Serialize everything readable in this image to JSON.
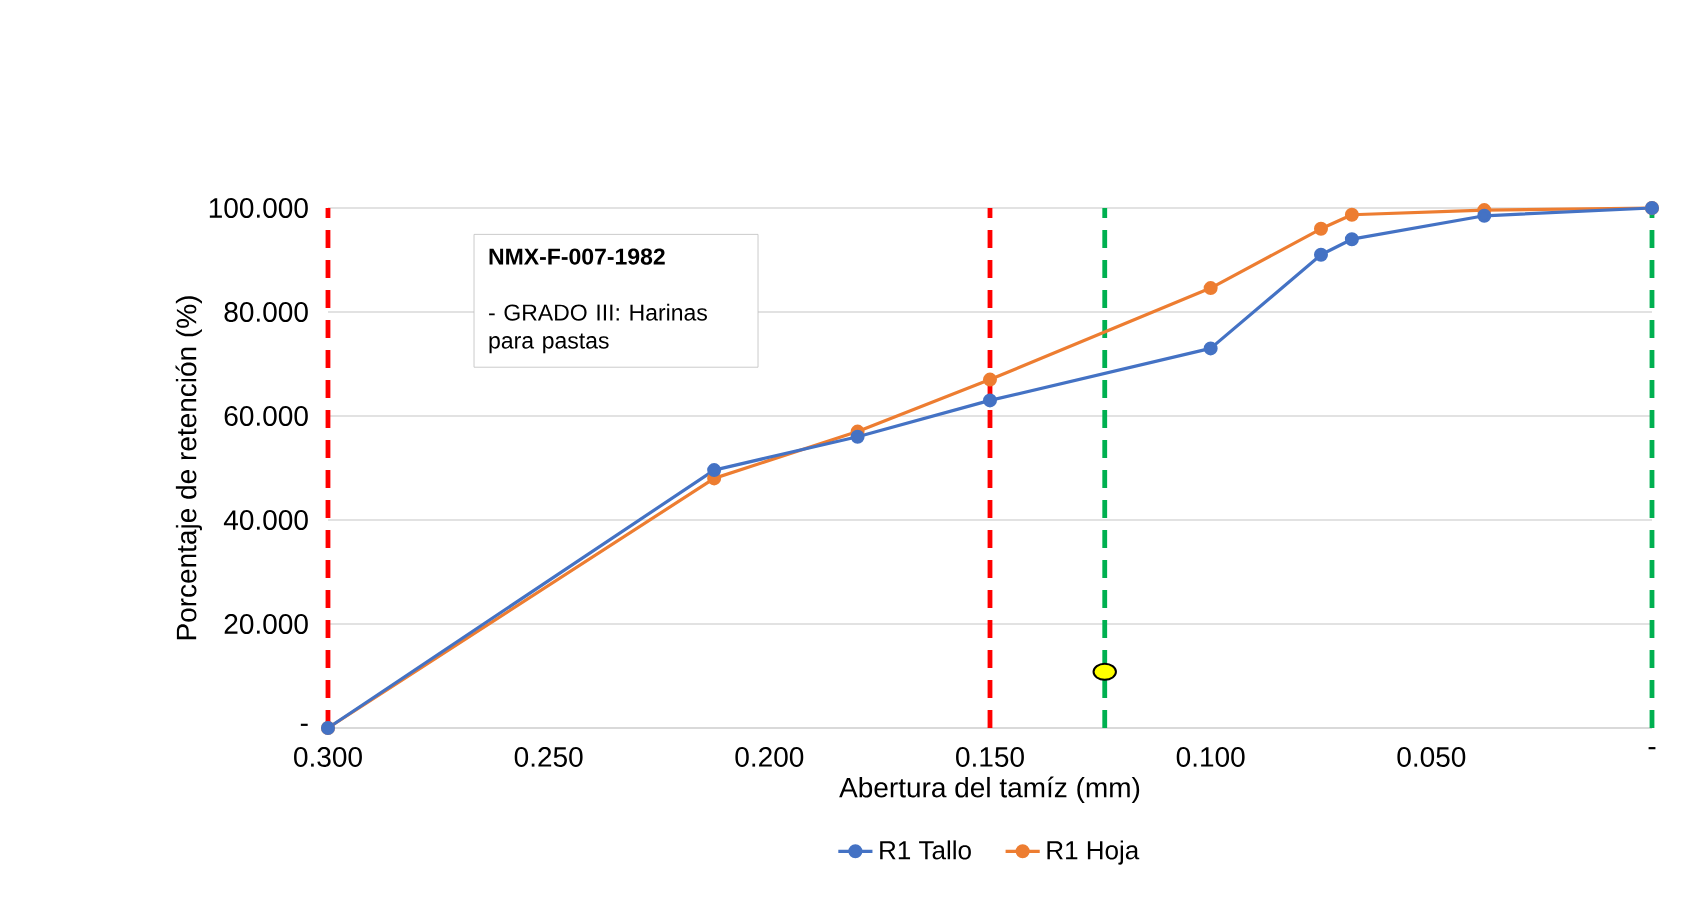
{
  "chart_data": {
    "type": "line",
    "xlabel": "Abertura del tamíz (mm)",
    "ylabel": "Porcentaje de retención (%)",
    "x": [
      0.3,
      0.2125,
      0.18,
      0.15,
      0.1,
      0.075,
      0.068,
      0.038,
      0
    ],
    "series": [
      {
        "name": "R1 Tallo",
        "color": "#4472c4",
        "values": [
          0,
          49.6,
          56,
          63,
          73,
          91,
          94,
          98.5,
          100
        ]
      },
      {
        "name": "R1 Hoja",
        "color": "#ed7d31",
        "values": [
          0,
          48,
          57,
          67,
          84.6,
          96,
          98.7,
          99.6,
          100
        ]
      },
      {
        "type": "scatter",
        "color": "#ffff00",
        "x": [
          0.124
        ],
        "values": [
          10.8
        ]
      }
    ],
    "xlim": [
      0.3,
      0
    ],
    "xticks": [
      {
        "value": 0.3,
        "label": "0.300"
      },
      {
        "value": 0.25,
        "label": "0.250"
      },
      {
        "value": 0.2,
        "label": "0.200"
      },
      {
        "value": 0.15,
        "label": "0.150"
      },
      {
        "value": 0.1,
        "label": "0.100"
      },
      {
        "value": 0.05,
        "label": "0.050"
      },
      {
        "value": 0,
        "label": "-"
      }
    ],
    "ylim": [
      0,
      100
    ],
    "yticks": [
      {
        "value": 0,
        "label": "-"
      },
      {
        "value": 20,
        "label": "20.000"
      },
      {
        "value": 40,
        "label": "40.000"
      },
      {
        "value": 60,
        "label": "60.000"
      },
      {
        "value": 80,
        "label": "80.000"
      },
      {
        "value": 100,
        "label": "100.000"
      }
    ],
    "ref_lines": [
      {
        "axis": "x",
        "value": 0.3,
        "color": "#ff0000",
        "line_style": "dashed"
      },
      {
        "axis": "x",
        "value": 0.15,
        "color": "#ff0000",
        "line_style": "dashed"
      },
      {
        "axis": "x",
        "value": 0.124,
        "color": "#00b050",
        "line_style": "dashed"
      },
      {
        "axis": "x",
        "value": 0,
        "color": "#00b050",
        "line_style": "dashed"
      }
    ],
    "annotations": [
      "NMX-F-007-1982",
      "- GRADO III: Harinas para pastas"
    ],
    "grid": "y",
    "legend": "bottom",
    "marker": "circle",
    "line_style": "solid"
  }
}
